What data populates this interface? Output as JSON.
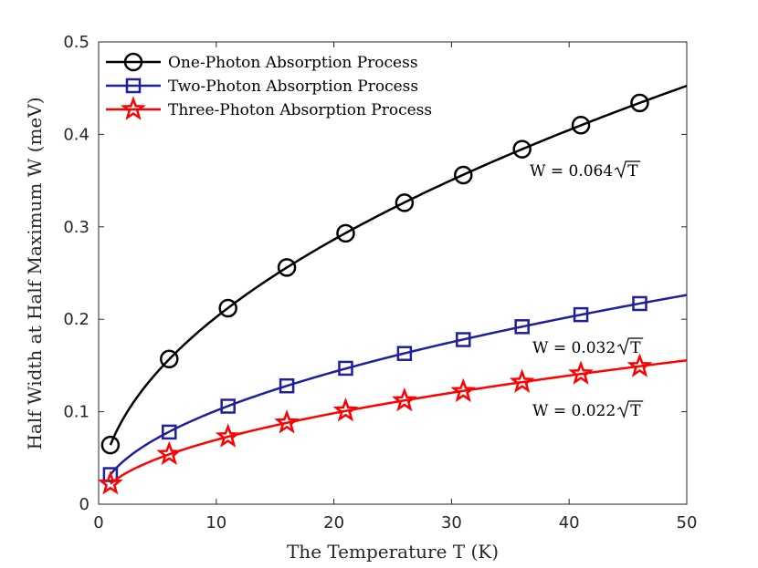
{
  "chart_data": {
    "type": "line",
    "xlabel": "The Temperature T (K)",
    "ylabel": "Half Width at Half Maximum W (meV)",
    "xlim": [
      0,
      50
    ],
    "ylim": [
      0,
      0.5
    ],
    "xticks": [
      0,
      10,
      20,
      30,
      40,
      50
    ],
    "yticks": [
      0,
      0.1,
      0.2,
      0.3,
      0.4,
      0.5
    ],
    "xtick_labels": [
      "0",
      "10",
      "20",
      "30",
      "40",
      "50"
    ],
    "ytick_labels": [
      "0",
      "0.1",
      "0.2",
      "0.3",
      "0.4",
      "0.5"
    ],
    "grid": false,
    "legend_position": "top-left",
    "x": [
      1,
      6,
      11,
      16,
      21,
      26,
      31,
      36,
      41,
      46
    ],
    "series": [
      {
        "name": "One-Photon Absorption Process",
        "coefficient": 0.064,
        "color": "#000000",
        "marker": "circle",
        "values": [
          0.064,
          0.157,
          0.212,
          0.256,
          0.293,
          0.326,
          0.356,
          0.384,
          0.41,
          0.434
        ]
      },
      {
        "name": "Two-Photon Absorption Process",
        "coefficient": 0.032,
        "color": "#1f1f9e",
        "marker": "square",
        "values": [
          0.032,
          0.078,
          0.106,
          0.128,
          0.147,
          0.163,
          0.178,
          0.192,
          0.205,
          0.217
        ]
      },
      {
        "name": "Three-Photon Absorption Process",
        "coefficient": 0.022,
        "color": "#ff0000",
        "marker": "star",
        "values": [
          0.022,
          0.054,
          0.073,
          0.088,
          0.101,
          0.112,
          0.122,
          0.132,
          0.141,
          0.149
        ]
      }
    ],
    "annotations": [
      {
        "prefix": "W = 0.064",
        "radicand": "T",
        "series": 0
      },
      {
        "prefix": "W = 0.032",
        "radicand": "T",
        "series": 1
      },
      {
        "prefix": "W = 0.022",
        "radicand": "T",
        "series": 2
      }
    ]
  }
}
